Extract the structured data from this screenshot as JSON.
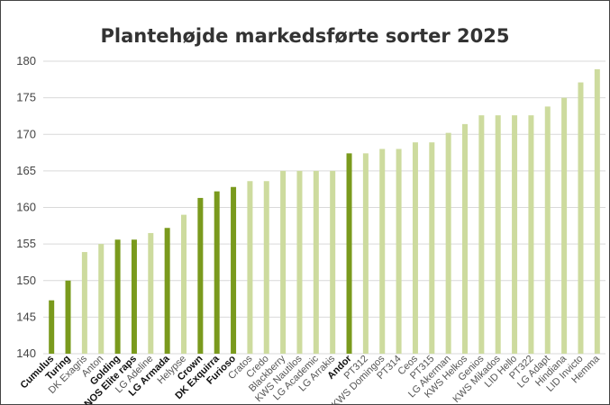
{
  "chart_data": {
    "type": "bar",
    "title": "Plantehøjde markedsførte sorter 2025",
    "xlabel": "",
    "ylabel": "",
    "ylim": [
      140,
      180
    ],
    "yticks": [
      140,
      145,
      150,
      155,
      160,
      165,
      170,
      175,
      180
    ],
    "grid": true,
    "categories": [
      "Cumulus",
      "Turing",
      "DK Exagris",
      "Anton",
      "Golding",
      "NOS Elite raps",
      "LG Adeline",
      "LG Armada",
      "Helypse",
      "Crown",
      "DK Exquirra",
      "Furioso",
      "Cratos",
      "Credo",
      "Blackberry",
      "KWS Nautilos",
      "LG Academic",
      "LG Arrakis",
      "Andor",
      "PT312",
      "KWS Domingos",
      "PT314",
      "Ceos",
      "PT315",
      "LG Akerman",
      "KWS Helkos",
      "Genios",
      "KWS Mikados",
      "LID Hello",
      "PT322",
      "LG Adapt",
      "Hindiana",
      "LID Invicto",
      "Hemma"
    ],
    "values": [
      147.3,
      150.0,
      153.9,
      155.0,
      155.6,
      155.6,
      156.5,
      157.2,
      159.0,
      161.3,
      162.2,
      162.8,
      163.6,
      163.6,
      165.0,
      165.0,
      165.0,
      165.0,
      167.4,
      167.4,
      168.0,
      168.0,
      168.9,
      168.9,
      170.2,
      171.4,
      172.6,
      172.6,
      172.6,
      172.6,
      173.8,
      175.0,
      177.1,
      178.9
    ],
    "highlighted": [
      "Cumulus",
      "Turing",
      "Golding",
      "NOS Elite raps",
      "LG Armada",
      "Crown",
      "DK Exquirra",
      "Furioso",
      "Andor"
    ],
    "colors": {
      "highlight": "#7a9a1d",
      "regular": "#cddb9e",
      "grid": "#d9d9d9",
      "axis_text": "#444444"
    }
  }
}
